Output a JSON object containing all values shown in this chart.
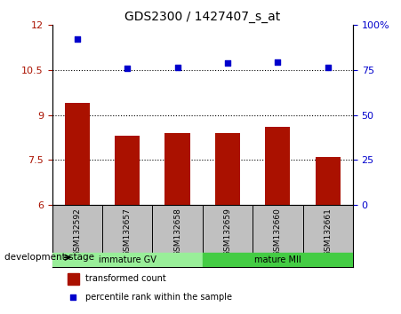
{
  "title": "GDS2300 / 1427407_s_at",
  "samples": [
    "GSM132592",
    "GSM132657",
    "GSM132658",
    "GSM132659",
    "GSM132660",
    "GSM132661"
  ],
  "bar_values": [
    9.4,
    8.3,
    8.4,
    8.4,
    8.6,
    7.6
  ],
  "scatter_values": [
    11.55,
    10.55,
    10.6,
    10.75,
    10.77,
    10.6
  ],
  "bar_color": "#aa1100",
  "scatter_color": "#0000cc",
  "ylim_left": [
    6,
    12
  ],
  "yticks_left": [
    6,
    7.5,
    9,
    10.5,
    12
  ],
  "ytick_labels_left": [
    "6",
    "7.5",
    "9",
    "10.5",
    "12"
  ],
  "ylim_right": [
    0,
    100
  ],
  "yticks_right": [
    0,
    25,
    50,
    75,
    100
  ],
  "ytick_labels_right": [
    "0",
    "25",
    "50",
    "75",
    "100%"
  ],
  "hlines": [
    7.5,
    9,
    10.5
  ],
  "group1_label": "immature GV",
  "group2_label": "mature MII",
  "group1_indices": [
    0,
    1,
    2
  ],
  "group2_indices": [
    3,
    4,
    5
  ],
  "group1_color": "#99ee99",
  "group2_color": "#44cc44",
  "stage_label": "development stage",
  "legend1_label": "transformed count",
  "legend2_label": "percentile rank within the sample",
  "plot_bg_color": "#e8e8e8",
  "label_area_color": "#c0c0c0"
}
